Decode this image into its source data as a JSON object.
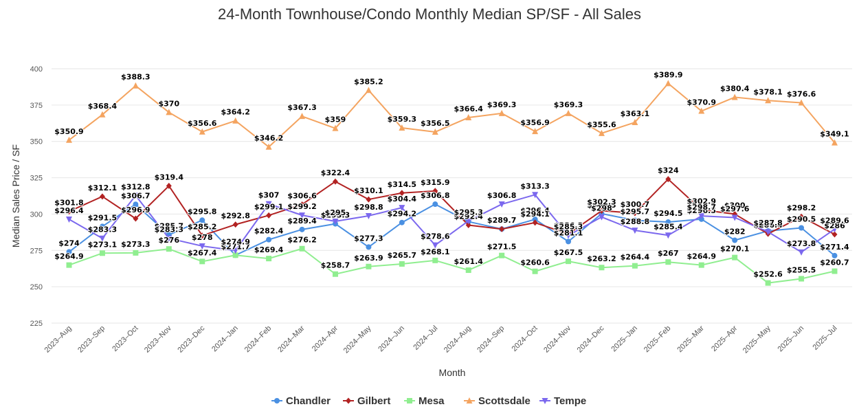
{
  "chart_data": {
    "type": "line",
    "title": "24-Month Townhouse/Condo Monthly Median SP/SF - All Sales",
    "xlabel": "Month",
    "ylabel": "Median Sales Price / SF",
    "ylim": [
      225,
      400
    ],
    "yticks": [
      225,
      250,
      275,
      300,
      325,
      350,
      375,
      400
    ],
    "grid": true,
    "legend_position": "bottom",
    "categories": [
      "2023–Aug",
      "2023–Sep",
      "2023–Oct",
      "2023–Nov",
      "2023–Dec",
      "2024–Jan",
      "2024–Feb",
      "2024–Mar",
      "2024–Apr",
      "2024–May",
      "2024–Jun",
      "2024–Jul",
      "2024–Aug",
      "2024–Sep",
      "2024–Oct",
      "2024–Nov",
      "2024–Dec",
      "2025–Jan",
      "2025–Feb",
      "2025–Mar",
      "2025–Apr",
      "2025–May",
      "2025–Jun",
      "2025–Jul"
    ],
    "series": [
      {
        "name": "Chandler",
        "color": "#4a90e2",
        "marker": "circle",
        "values": [
          274,
          291.5,
          306.7,
          285.7,
          295.8,
          271.7,
          282.4,
          289.4,
          293.3,
          277.3,
          294.2,
          306.8,
          294.8,
          289.7,
          296.4,
          281.1,
          300.3,
          295.7,
          294.5,
          296.5,
          282,
          288.4,
          290.5,
          271.4
        ],
        "labels": [
          "$274",
          "$291.5",
          "$306.7",
          "$285.7",
          "$295.8",
          "$271.7",
          "$282.4",
          "$289.4",
          "$293.3",
          "$277.3",
          "$294.2",
          "$306.8",
          "$294.8",
          "$289.7",
          "$296.4",
          "$281.1",
          "$300.3",
          "$295.7",
          "$294.5",
          "$296.5",
          "$282",
          "$288.4",
          "$290.5",
          "$271.4"
        ]
      },
      {
        "name": "Gilbert",
        "color": "#b22222",
        "marker": "diamond",
        "values": [
          301.8,
          312.1,
          296.9,
          319.4,
          285.2,
          292.8,
          299.1,
          306.6,
          322.4,
          310.1,
          314.5,
          315.9,
          292.4,
          289.7,
          294.1,
          286.3,
          302.3,
          300.7,
          324,
          302.9,
          300,
          286.4,
          298.2,
          286
        ],
        "labels": [
          "$301.8",
          "$312.1",
          "$296.9",
          "$319.4",
          "$285.2",
          "$292.8",
          "$299.1",
          "$306.6",
          "$322.4",
          "$310.1",
          "$314.5",
          "$315.9",
          "$292.4",
          "$289.7",
          "$294.1",
          "$286.3",
          "$302.3",
          "$300.7",
          "$324",
          "$302.9",
          "$300",
          "$286.4",
          "$298.2",
          "$286"
        ]
      },
      {
        "name": "Mesa",
        "color": "#90ee90",
        "marker": "square",
        "values": [
          264.9,
          273.1,
          273.3,
          276,
          267.4,
          271.7,
          269.4,
          276.2,
          258.7,
          263.9,
          265.7,
          268.1,
          261.4,
          271.5,
          260.6,
          267.5,
          263.2,
          264.4,
          267,
          264.9,
          270.1,
          252.6,
          255.5,
          260.7
        ],
        "labels": [
          "$264.9",
          "$273.1",
          "$273.3",
          "$276",
          "$267.4",
          "$271.7",
          "$269.4",
          "$276.2",
          "$258.7",
          "$263.9",
          "$265.7",
          "$268.1",
          "$261.4",
          "$271.5",
          "$260.6",
          "$267.5",
          "$263.2",
          "$264.4",
          "$267",
          "$264.9",
          "$270.1",
          "$252.6",
          "$255.5",
          "$260.7"
        ]
      },
      {
        "name": "Scottsdale",
        "color": "#f4a460",
        "marker": "triangle-up",
        "values": [
          350.9,
          368.4,
          388.3,
          370,
          356.6,
          364.2,
          346.2,
          367.3,
          359,
          385.2,
          359.3,
          356.5,
          366.4,
          369.3,
          356.9,
          369.3,
          355.6,
          363.1,
          389.9,
          370.9,
          380.4,
          378.1,
          376.6,
          349.1
        ],
        "labels": [
          "$350.9",
          "$368.4",
          "$388.3",
          "$370",
          "$356.6",
          "$364.2",
          "$346.2",
          "$367.3",
          "$359",
          "$385.2",
          "$359.3",
          "$356.5",
          "$366.4",
          "$369.3",
          "$356.9",
          "$369.3",
          "$355.6",
          "$363.1",
          "$389.9",
          "$370.9",
          "$380.4",
          "$378.1",
          "$376.6",
          "$349.1"
        ]
      },
      {
        "name": "Tempe",
        "color": "#7b68ee",
        "marker": "triangle-down",
        "values": [
          296.4,
          283.3,
          312.8,
          283.3,
          278,
          274.9,
          307,
          299.2,
          295,
          298.8,
          304.4,
          278.6,
          295.3,
          306.8,
          313.3,
          285.3,
          298,
          288.8,
          285.4,
          298.7,
          297.6,
          287.8,
          273.8,
          289.6
        ],
        "labels": [
          "$296.4",
          "$283.3",
          "$312.8",
          "$283.3",
          "$278",
          "$274.9",
          "$307",
          "$299.2",
          "$295",
          "$298.8",
          "$304.4",
          "$278.6",
          "$295.3",
          "$306.8",
          "$313.3",
          "$285.3",
          "$298",
          "$288.8",
          "$285.4",
          "$298.7",
          "$297.6",
          "$287.8",
          "$273.8",
          "$289.6"
        ]
      }
    ]
  }
}
